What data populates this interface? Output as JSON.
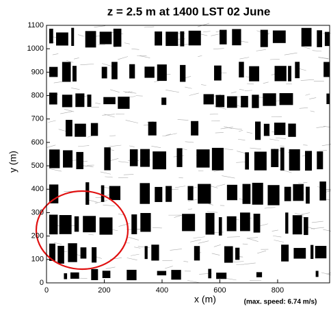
{
  "chart_data": {
    "type": "vector-field",
    "title": "z = 2.5 m at 1400 LST 02 June",
    "x_label": "x (m)",
    "y_label": "y (m)",
    "annotation": "(max. speed: 6.74 m/s)",
    "xlim": [
      0,
      980
    ],
    "xticks": [
      0,
      200,
      400,
      600,
      800
    ],
    "ylim": [
      0,
      1100
    ],
    "yticks": [
      0,
      100,
      200,
      300,
      400,
      500,
      600,
      700,
      800,
      900,
      1000,
      1100
    ]
  }
}
